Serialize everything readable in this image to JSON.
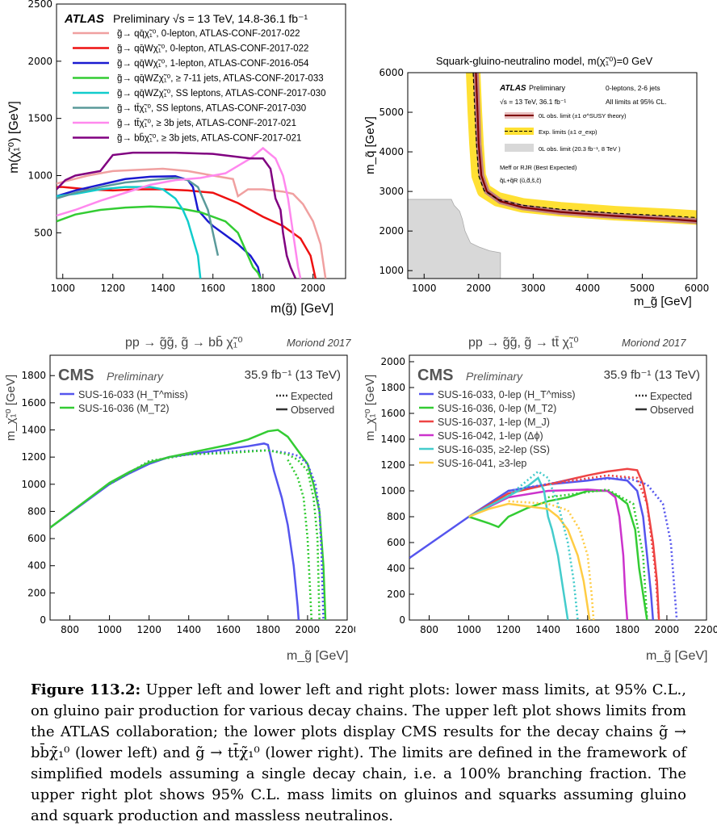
{
  "figure": {
    "caption_label": "Figure 113.2:",
    "caption_text": "Upper left and lower left and right plots: lower mass limits, at 95% C.L., on gluino pair production for various decay chains. The upper left plot shows limits from the ATLAS collaboration; the lower plots display CMS results for the decay chains g̃ → bb̄χ̃₁⁰ (lower left) and g̃ → tt̄χ̃₁⁰ (lower right). The limits are defined in the framework of simplified models assuming a single decay chain, i.e. a 100% branching fraction. The upper right plot shows 95% C.L. mass limits on gluinos and squarks assuming gluino and squark production and massless neutralinos."
  },
  "chart_data": [
    {
      "id": "atlas",
      "type": "line",
      "header_bold": "ATLAS",
      "header_rest": "Preliminary   √s = 13 TeV, 14.8-36.1 fb⁻¹",
      "xlabel": "m(g̃) [GeV]",
      "ylabel": "m(χ̃₁⁰) [GeV]",
      "xlim": [
        975,
        2130
      ],
      "ylim": [
        100,
        2500
      ],
      "xticks": [
        1000,
        1200,
        1400,
        1600,
        1800,
        2000
      ],
      "yticks": [
        500,
        1000,
        1500,
        2000,
        2500
      ],
      "series": [
        {
          "name": "g̃→ qq̄χ̃₁⁰, 0-lepton, ATLAS-CONF-2017-022",
          "color": "#f0a0a0",
          "x": [
            975,
            1010,
            1100,
            1200,
            1300,
            1400,
            1500,
            1600,
            1680,
            1700,
            1740,
            1800,
            1880,
            1920,
            1960,
            2000,
            2030,
            2050
          ],
          "y": [
            930,
            950,
            1000,
            1040,
            1050,
            1060,
            1040,
            1000,
            970,
            820,
            880,
            880,
            860,
            840,
            750,
            600,
            400,
            100
          ]
        },
        {
          "name": "g̃→ qq̄Wχ̃₁⁰, 0-lepton, ATLAS-CONF-2017-022",
          "color": "#ee1111",
          "x": [
            975,
            1000,
            1100,
            1200,
            1300,
            1400,
            1500,
            1600,
            1700,
            1800,
            1880,
            1950,
            1990,
            2000,
            2010
          ],
          "y": [
            900,
            900,
            880,
            870,
            880,
            880,
            870,
            850,
            760,
            640,
            560,
            450,
            300,
            200,
            100
          ]
        },
        {
          "name": "g̃→ qq̄Wχ̃₁⁰, 1-lepton, ATLAS-CONF-2016-054",
          "color": "#1a1ad0",
          "x": [
            975,
            1050,
            1150,
            1250,
            1350,
            1450,
            1500,
            1520,
            1540,
            1560,
            1580,
            1600,
            1650,
            1700,
            1750,
            1780,
            1790
          ],
          "y": [
            820,
            870,
            920,
            970,
            990,
            995,
            960,
            900,
            700,
            650,
            600,
            560,
            480,
            400,
            300,
            200,
            100
          ]
        },
        {
          "name": "g̃→ qq̄WZχ̃₁⁰, ≥ 7-11 jets, ATLAS-CONF-2017-033",
          "color": "#33cc33",
          "x": [
            975,
            1050,
            1150,
            1250,
            1350,
            1450,
            1550,
            1650,
            1700,
            1720,
            1740,
            1760,
            1780,
            1790
          ],
          "y": [
            600,
            660,
            700,
            720,
            730,
            720,
            680,
            600,
            500,
            400,
            300,
            200,
            150,
            100
          ]
        },
        {
          "name": "g̃→ qq̄WZχ̃₁⁰, SS leptons, ATLAS-CONF-2017-030",
          "color": "#11cccc",
          "x": [
            975,
            1050,
            1150,
            1250,
            1350,
            1400,
            1450,
            1480,
            1500,
            1520,
            1540,
            1550
          ],
          "y": [
            820,
            840,
            880,
            900,
            900,
            880,
            800,
            700,
            600,
            450,
            300,
            100
          ]
        },
        {
          "name": "g̃→ tt̄χ̃₁⁰, SS leptons, ATLAS-CONF-2017-030",
          "color": "#5a9a9a",
          "x": [
            975,
            1050,
            1150,
            1250,
            1350,
            1450,
            1500,
            1540,
            1560,
            1580,
            1600,
            1620
          ],
          "y": [
            800,
            850,
            900,
            940,
            960,
            980,
            960,
            900,
            800,
            700,
            500,
            300
          ]
        },
        {
          "name": "g̃→ tt̄χ̃₁⁰, ≥ 3b jets, ATLAS-CONF-2017-021",
          "color": "#ff88ee",
          "x": [
            975,
            1050,
            1150,
            1250,
            1350,
            1450,
            1550,
            1650,
            1750,
            1800,
            1850,
            1880,
            1900,
            1920,
            1940,
            1950
          ],
          "y": [
            650,
            700,
            780,
            850,
            920,
            960,
            980,
            1020,
            1150,
            1240,
            1150,
            1000,
            800,
            500,
            200,
            100
          ]
        },
        {
          "name": "g̃→ bb̄χ̃₁⁰, ≥ 3b jets, ATLAS-CONF-2017-021",
          "color": "#800080",
          "x": [
            975,
            1010,
            1050,
            1100,
            1150,
            1200,
            1280,
            1350,
            1450,
            1600,
            1750,
            1800,
            1830,
            1850,
            1870,
            1880,
            1895,
            1910,
            1930
          ],
          "y": [
            880,
            960,
            1000,
            1020,
            1040,
            1180,
            1200,
            1200,
            1200,
            1190,
            1150,
            1150,
            1060,
            800,
            700,
            500,
            300,
            200,
            100
          ]
        }
      ]
    },
    {
      "id": "sqgl",
      "type": "line",
      "title": "Squark-gluino-neutralino model, m(χ̃₁⁰)=0 GeV",
      "xlabel": "m_g̃ [GeV]",
      "ylabel": "m_q̃ [GeV]",
      "xlim": [
        700,
        6000
      ],
      "ylim": [
        800,
        6000
      ],
      "xticks": [
        1000,
        2000,
        3000,
        4000,
        5000,
        6000
      ],
      "yticks": [
        1000,
        2000,
        3000,
        4000,
        5000,
        6000
      ],
      "header_bold": "ATLAS",
      "header_rest": "Preliminary",
      "info": [
        "√s = 13 TeV, 36.1 fb⁻¹",
        "0-leptons, 2-6 jets",
        "All limits at 95% CL."
      ],
      "legend": [
        "0L obs. limit (±1 σ^SUSY theory)",
        "Exp. limits (±1 σ_exp)",
        "0L obs. limit (20.3 fb⁻¹, 8 TeV )",
        "Meff or RJR (Best Expected)",
        "q̃L+q̃R (ũ,d̃,s̃,c̃)"
      ],
      "band_color": "#ffe033",
      "obs_color": "#800000",
      "grey_color": "#d8d8d8",
      "observed": {
        "x": [
          1950,
          1980,
          2000,
          2050,
          2150,
          2400,
          2800,
          3500,
          4500,
          5500,
          6000
        ],
        "y": [
          6000,
          5000,
          4200,
          3400,
          3000,
          2750,
          2600,
          2480,
          2380,
          2300,
          2250
        ]
      },
      "expected": {
        "x": [
          1900,
          1930,
          1960,
          2000,
          2100,
          2350,
          2800,
          3500,
          4500,
          5500,
          6000
        ],
        "y": [
          6000,
          5000,
          4200,
          3400,
          3020,
          2800,
          2650,
          2550,
          2450,
          2380,
          2340
        ]
      },
      "run1": {
        "x": [
          700,
          1500,
          1550,
          1650,
          1700,
          1750,
          1850,
          2000,
          2200,
          2400,
          2400,
          700
        ],
        "y": [
          2800,
          2800,
          2650,
          2500,
          2300,
          2000,
          1700,
          1600,
          1500,
          1450,
          800,
          800
        ]
      }
    },
    {
      "id": "cms_bb",
      "type": "line",
      "title": "pp → g̃g̃,  g̃ → bb̄ χ̃₁⁰",
      "tag": "Moriond 2017",
      "header_bold": "CMS",
      "header_italic": "Preliminary",
      "lumi": "35.9 fb⁻¹ (13 TeV)",
      "legend_style": [
        "Expected",
        "Observed"
      ],
      "xlabel": "m_g̃ [GeV]",
      "ylabel": "m_χ̃₁⁰ [GeV]",
      "xlim": [
        700,
        2200
      ],
      "ylim": [
        0,
        1950
      ],
      "xticks": [
        800,
        1000,
        1200,
        1400,
        1600,
        1800,
        2000,
        2200
      ],
      "yticks": [
        0,
        200,
        400,
        600,
        800,
        1000,
        1200,
        1400,
        1600,
        1800
      ],
      "series": [
        {
          "name": "SUS-16-033 (H_T^miss)",
          "color": "#5555ee",
          "style": "solid",
          "x": [
            700,
            1000,
            1100,
            1200,
            1300,
            1400,
            1500,
            1600,
            1700,
            1780,
            1800,
            1830,
            1870,
            1900,
            1930,
            1950,
            1955
          ],
          "y": [
            680,
            1000,
            1080,
            1150,
            1200,
            1220,
            1240,
            1260,
            1280,
            1300,
            1290,
            1100,
            900,
            700,
            400,
            100,
            0
          ]
        },
        {
          "name": "SUS-16-036 (M_T2)",
          "color": "#33cc33",
          "style": "solid",
          "x": [
            700,
            1000,
            1100,
            1200,
            1300,
            1400,
            1500,
            1600,
            1700,
            1800,
            1850,
            1900,
            1950,
            2000,
            2030,
            2060,
            2080,
            2090
          ],
          "y": [
            680,
            1010,
            1090,
            1160,
            1200,
            1230,
            1260,
            1290,
            1330,
            1390,
            1400,
            1350,
            1250,
            1150,
            1000,
            800,
            400,
            0
          ]
        },
        {
          "name": "SUS-16-033 expected",
          "color": "#5555ee",
          "style": "dotted",
          "x": [
            1000,
            1200,
            1400,
            1600,
            1800,
            1900,
            1950,
            2000,
            2040,
            2060,
            2070,
            2080
          ],
          "y": [
            1000,
            1170,
            1220,
            1240,
            1250,
            1230,
            1210,
            1150,
            1000,
            800,
            500,
            0
          ]
        },
        {
          "name": "SUS-16-036 expected",
          "color": "#33cc33",
          "style": "dotted",
          "x": [
            1000,
            1200,
            1400,
            1600,
            1800,
            1900,
            1950,
            2000,
            2030,
            2050,
            2060
          ],
          "y": [
            1000,
            1170,
            1220,
            1230,
            1250,
            1220,
            1180,
            1100,
            900,
            600,
            0
          ]
        },
        {
          "name": "SUS-16-036 expected band",
          "color": "#33cc33",
          "style": "dotted",
          "x": [
            1900,
            1950,
            1980,
            2000,
            2010,
            2020
          ],
          "y": [
            1180,
            1050,
            900,
            600,
            300,
            0
          ]
        }
      ]
    },
    {
      "id": "cms_tt",
      "type": "line",
      "title": "pp → g̃g̃,  g̃ → tt̄ χ̃₁⁰",
      "tag": "Moriond 2017",
      "header_bold": "CMS",
      "header_italic": "Preliminary",
      "lumi": "35.9 fb⁻¹ (13 TeV)",
      "legend_style": [
        "Expected",
        "Observed"
      ],
      "xlabel": "m_g̃ [GeV]",
      "ylabel": "m_χ̃₁⁰ [GeV]",
      "xlim": [
        700,
        2200
      ],
      "ylim": [
        0,
        2050
      ],
      "xticks": [
        800,
        1000,
        1200,
        1400,
        1600,
        1800,
        2000,
        2200
      ],
      "yticks": [
        0,
        200,
        400,
        600,
        800,
        1000,
        1200,
        1400,
        1600,
        1800,
        2000
      ],
      "series": [
        {
          "name": "SUS-16-033, 0-lep (H_T^miss)",
          "color": "#5555ee",
          "style": "solid",
          "x": [
            700,
            1000,
            1200,
            1400,
            1600,
            1700,
            1800,
            1850,
            1880,
            1900,
            1920,
            1930
          ],
          "y": [
            480,
            800,
            1000,
            1050,
            1080,
            1100,
            1080,
            1000,
            800,
            500,
            200,
            0
          ]
        },
        {
          "name": "SUS-16-036, 0-lep (M_T2)",
          "color": "#33cc33",
          "style": "solid",
          "x": [
            1000,
            1100,
            1150,
            1200,
            1300,
            1400,
            1500,
            1600,
            1700,
            1750,
            1800,
            1840,
            1860,
            1880,
            1900
          ],
          "y": [
            800,
            750,
            720,
            800,
            870,
            920,
            950,
            1000,
            1000,
            960,
            900,
            700,
            400,
            200,
            0
          ]
        },
        {
          "name": "SUS-16-037, 1-lep (M_J)",
          "color": "#ee4444",
          "style": "solid",
          "x": [
            1000,
            1200,
            1400,
            1600,
            1700,
            1800,
            1850,
            1880,
            1900,
            1930,
            1950,
            1960
          ],
          "y": [
            800,
            980,
            1050,
            1120,
            1150,
            1170,
            1160,
            1050,
            900,
            600,
            300,
            0
          ]
        },
        {
          "name": "SUS-16-042, 1-lep (Δϕ)",
          "color": "#cc33cc",
          "style": "solid",
          "x": [
            1000,
            1200,
            1400,
            1600,
            1700,
            1740,
            1760,
            1780,
            1790,
            1800
          ],
          "y": [
            800,
            950,
            1000,
            1010,
            1000,
            950,
            800,
            500,
            200,
            0
          ]
        },
        {
          "name": "SUS-16-035, ≥2-lep (SS)",
          "color": "#44cccc",
          "style": "solid",
          "x": [
            1000,
            1100,
            1200,
            1300,
            1350,
            1380,
            1400,
            1420,
            1450,
            1480,
            1500
          ],
          "y": [
            800,
            880,
            960,
            1040,
            1100,
            1000,
            800,
            700,
            500,
            200,
            0
          ]
        },
        {
          "name": "SUS-16-041, ≥3-lep",
          "color": "#ffcc44",
          "style": "solid",
          "x": [
            1000,
            1100,
            1200,
            1300,
            1400,
            1450,
            1500,
            1550,
            1580,
            1600,
            1610
          ],
          "y": [
            800,
            860,
            900,
            880,
            860,
            800,
            700,
            500,
            300,
            100,
            0
          ]
        },
        {
          "name": "SUS-16-033 expected",
          "color": "#5555ee",
          "style": "dotted",
          "x": [
            1200,
            1500,
            1800,
            1900,
            1980,
            2020,
            2040,
            2050
          ],
          "y": [
            1000,
            1080,
            1100,
            1050,
            900,
            600,
            200,
            0
          ]
        },
        {
          "name": "SUS-16-035 expected",
          "color": "#44cccc",
          "style": "dotted",
          "x": [
            1200,
            1350,
            1400,
            1450,
            1500,
            1530,
            1550
          ],
          "y": [
            960,
            1150,
            1100,
            900,
            600,
            300,
            0
          ]
        },
        {
          "name": "SUS-16-041 expected",
          "color": "#ffcc44",
          "style": "dotted",
          "x": [
            1200,
            1400,
            1500,
            1560,
            1600,
            1620,
            1630
          ],
          "y": [
            920,
            900,
            850,
            700,
            500,
            200,
            0
          ]
        },
        {
          "name": "SUS-16-037 expected",
          "color": "#ee4444",
          "style": "dotted",
          "x": [
            1400,
            1700,
            1850,
            1900,
            1940,
            1960
          ],
          "y": [
            1050,
            1120,
            1100,
            900,
            400,
            0
          ]
        },
        {
          "name": "SUS-16-036 expected",
          "color": "#33cc33",
          "style": "dotted",
          "x": [
            1400,
            1700,
            1830,
            1880,
            1900
          ],
          "y": [
            950,
            1010,
            900,
            500,
            0
          ]
        }
      ]
    }
  ]
}
